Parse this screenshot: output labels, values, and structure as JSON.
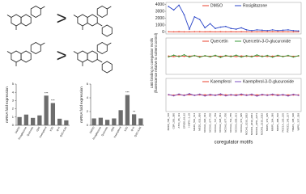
{
  "figure": {
    "comparison_symbols": [
      ">",
      ">"
    ]
  },
  "chart_data": [
    {
      "type": "line",
      "y_label": "LBD binding to coregulator motifs",
      "y_label_note": "(fluorescence relative to solvent control)",
      "x_label": "coregulator motifs",
      "categories": [
        "BRD8_708_728",
        "CBP_356_380",
        "ATF4_96_113",
        "EP300_69_92",
        "HAIRY_1_18",
        "MED1_591_614",
        "MED1_632_656",
        "NCOA1_620_643",
        "NCOA1_677_700",
        "NCOA1_737_759",
        "NCOA2_628_651",
        "NCOA2_677_700",
        "NCOA2_733_755",
        "NCOA3_609_631",
        "NCOA3_673_695",
        "NCOA3_1030_1052",
        "NCOR1_2039_2061",
        "NCOR1_2251_2273",
        "NCOR2_2330_2352",
        "NRIP1_173_195",
        "NRIP1_364_386",
        "NRIP1_488_510",
        "PGC1A_130_155",
        "PRGC2_145_167",
        "TREF1_168_190",
        "WIPI1_337_359"
      ],
      "panels": [
        {
          "ylim": [
            -300,
            4300
          ],
          "yticks": [
            0,
            1000,
            2000,
            3000,
            4000
          ],
          "series": [
            {
              "name": "DMSO",
              "color": "#e8412c",
              "values": [
                20,
                10,
                15,
                5,
                10,
                20,
                15,
                10,
                20,
                10,
                15,
                10,
                20,
                10,
                15,
                10,
                5,
                10,
                15,
                10,
                20,
                10,
                15,
                10,
                5,
                10
              ]
            },
            {
              "name": "Rosiglitazone",
              "color": "#2b46c8",
              "values": [
                3700,
                3200,
                3900,
                2500,
                400,
                2200,
                1800,
                600,
                1200,
                500,
                700,
                800,
                500,
                400,
                600,
                300,
                200,
                300,
                250,
                200,
                300,
                200,
                250,
                300,
                200,
                150
              ]
            }
          ]
        },
        {
          "ylim": [
            -1000,
            1000
          ],
          "series": [
            {
              "name": "Quercetin",
              "color": "#e8412c",
              "values": [
                10,
                -20,
                15,
                -10,
                5,
                20,
                -15,
                10,
                -5,
                15,
                -10,
                5,
                10,
                -20,
                15,
                -10,
                5,
                -5,
                10,
                -15,
                5,
                10,
                -5,
                15,
                -10,
                5
              ]
            },
            {
              "name": "Quercetin-3-O-glucuronide",
              "color": "#3a9a3a",
              "values": [
                -40,
                60,
                -30,
                80,
                -50,
                40,
                -60,
                30,
                -40,
                50,
                -70,
                40,
                -30,
                60,
                -50,
                30,
                -40,
                70,
                -30,
                40,
                -60,
                50,
                -30,
                40,
                -50,
                30
              ]
            }
          ]
        },
        {
          "ylim": [
            -1000,
            1000
          ],
          "series": [
            {
              "name": "Kaempferol",
              "color": "#e8412c",
              "values": [
                5,
                -10,
                10,
                -5,
                15,
                -10,
                5,
                10,
                -15,
                5,
                -5,
                10,
                -10,
                15,
                -5,
                10,
                -10,
                5,
                -5,
                10,
                -5,
                15,
                -10,
                5,
                -5,
                10
              ]
            },
            {
              "name": "Kaempferol-3-O-glucuronide",
              "color": "#7b4fc0",
              "values": [
                30,
                -50,
                60,
                -40,
                80,
                -30,
                50,
                -60,
                40,
                -30,
                70,
                -50,
                30,
                -40,
                60,
                -30,
                50,
                -70,
                40,
                -30,
                50,
                -40,
                30,
                -60,
                40,
                -30
              ]
            }
          ]
        }
      ]
    },
    {
      "type": "bar",
      "y_label": "mRNA fold expression",
      "color": "#6d6d6d",
      "categories": [
        "DMSO",
        "Rosiglitazone",
        "Quercetin",
        "Q3G",
        "Kaempferol",
        "K3G",
        "Q+K",
        "Q3G+K3G"
      ],
      "values": [
        1,
        1.3,
        0.9,
        1.2,
        3.6,
        2.7,
        0.8,
        0.6
      ],
      "significance": [
        null,
        null,
        null,
        null,
        "***",
        "***",
        null,
        null
      ],
      "ylim": [
        0,
        5
      ],
      "yticks": [
        0,
        1,
        2,
        3,
        4,
        5
      ]
    },
    {
      "type": "bar",
      "y_label": "mRNA fold expression",
      "color": "#6d6d6d",
      "categories": [
        "DMSO",
        "Rosiglitazone",
        "Quercetin",
        "Q3G",
        "Kaempferol",
        "K3G",
        "Q+K",
        "Q3G+K3G"
      ],
      "values": [
        1,
        1.1,
        0.8,
        1.0,
        2.2,
        4.4,
        1.6,
        1.0
      ],
      "significance": [
        null,
        null,
        null,
        null,
        null,
        "***",
        "**",
        null
      ],
      "ylim": [
        0,
        6
      ],
      "yticks": [
        0,
        2,
        4,
        6
      ]
    }
  ]
}
